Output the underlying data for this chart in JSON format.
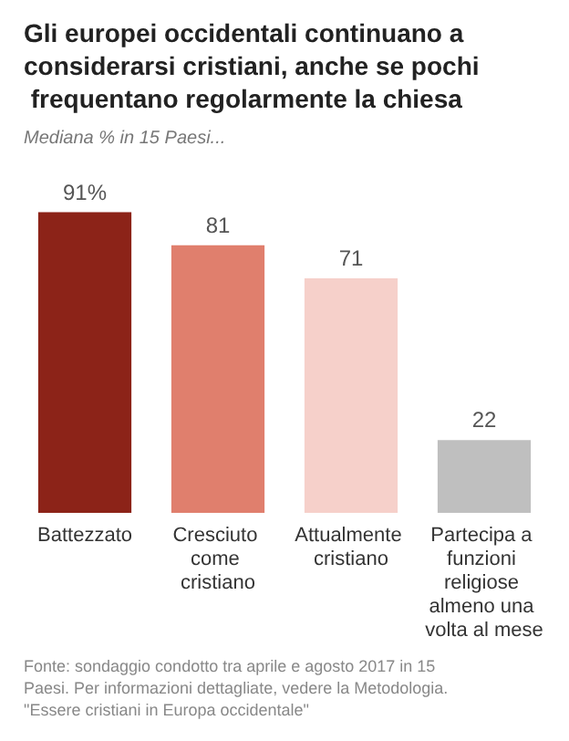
{
  "chart_data": {
    "type": "bar",
    "title": "Gli europei occidentali continuano a considerarsi cristiani, anche se pochi frequentano regolarmente la chiesa",
    "subtitle": "Mediana % in 15 Paesi...",
    "categories": [
      "Battezzato",
      "Cresciuto come cristiano",
      "Attualmente cristiano",
      "Partecipa a funzioni religiose almeno una volta al mese"
    ],
    "values": [
      91,
      81,
      71,
      22
    ],
    "colors": [
      "#8c2318",
      "#e07f6d",
      "#f6d0ca",
      "#bfbfbf"
    ],
    "value_labels": [
      "91%",
      "81",
      "71",
      "22"
    ],
    "annotations": [
      "Fonte: sondaggio condotto tra aprile e agosto 2017 in 15 Paesi. Per informazioni dettagliate, vedere la Metodologia.",
      "\"Essere cristiani in Europa occidentale\""
    ]
  }
}
